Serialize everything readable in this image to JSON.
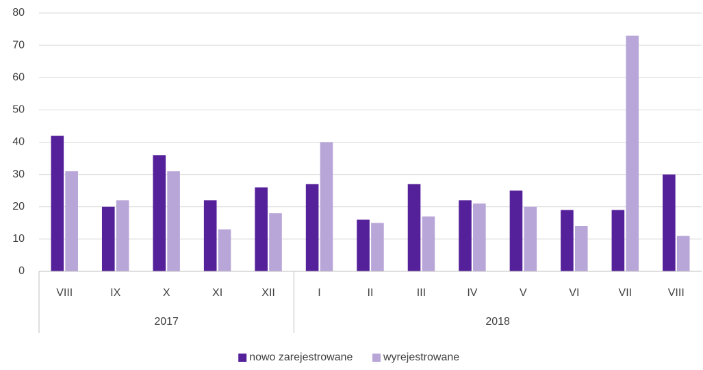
{
  "chart_data": {
    "type": "bar",
    "groups": [
      {
        "name": "2017",
        "categories": [
          "VIII",
          "IX",
          "X",
          "XI",
          "XII"
        ]
      },
      {
        "name": "2018",
        "categories": [
          "I",
          "II",
          "III",
          "IV",
          "V",
          "VI",
          "VII",
          "VIII"
        ]
      }
    ],
    "series": [
      {
        "name": "nowo zarejestrowane",
        "color": "#55219a",
        "values": [
          42,
          20,
          36,
          22,
          26,
          27,
          16,
          27,
          22,
          25,
          19,
          19,
          30
        ]
      },
      {
        "name": "wyrejestrowane",
        "color": "#b9a6d8",
        "values": [
          31,
          22,
          31,
          13,
          18,
          40,
          15,
          17,
          21,
          20,
          14,
          73,
          11
        ]
      }
    ],
    "ylim": [
      0,
      80
    ],
    "yticks": [
      0,
      10,
      20,
      30,
      40,
      50,
      60,
      70,
      80
    ],
    "grid": true,
    "legend": "bottom"
  }
}
